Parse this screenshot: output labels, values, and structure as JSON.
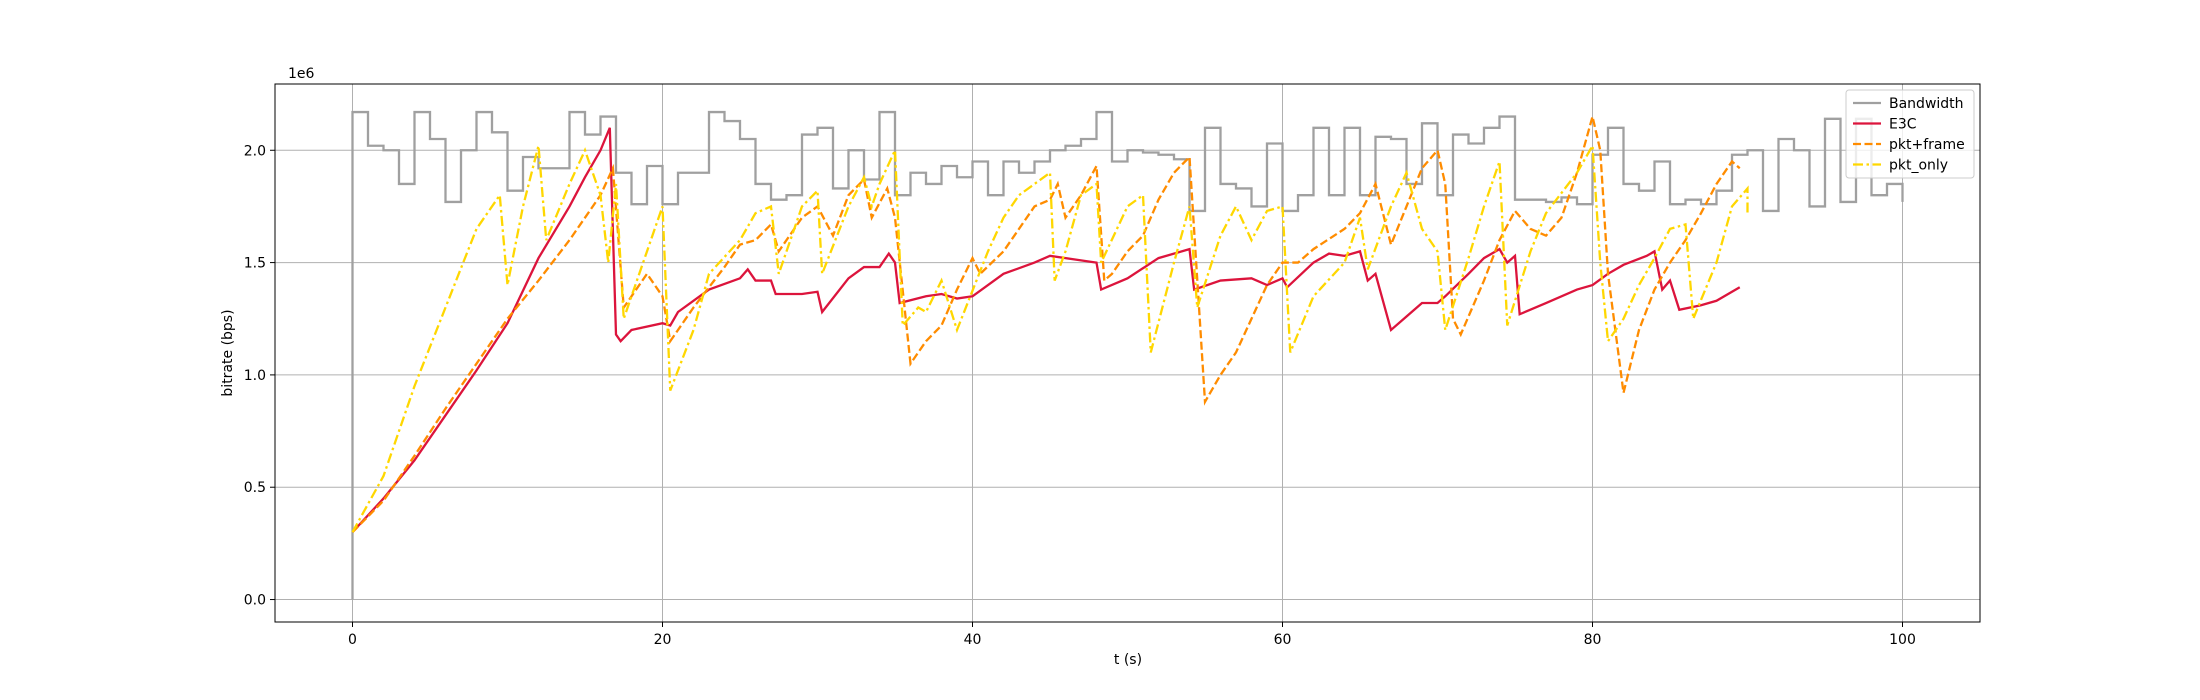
{
  "chart_data": {
    "type": "line",
    "xlabel": "t (s)",
    "ylabel": "bitrate (bps)",
    "y_offset_label": "1e6",
    "xlim": [
      -5,
      105
    ],
    "xticks": [
      0,
      20,
      40,
      60,
      80,
      100
    ],
    "ylim": [
      -100000,
      2295000
    ],
    "yticks": [
      {
        "value": 0,
        "label": "0.0"
      },
      {
        "value": 500000,
        "label": "0.5"
      },
      {
        "value": 1000000,
        "label": "1.0"
      },
      {
        "value": 1500000,
        "label": "1.5"
      },
      {
        "value": 2000000,
        "label": "2.0"
      }
    ],
    "grid": true,
    "legend": "upper right",
    "series": [
      {
        "name": "Bandwidth",
        "color": "#a0a0a0",
        "style": "solid",
        "step": "post",
        "x": [
          0,
          0,
          1,
          2,
          3,
          4,
          5,
          6,
          7,
          8,
          9,
          10,
          11,
          12,
          13,
          14,
          15,
          16,
          17,
          18,
          19,
          20,
          21,
          22,
          23,
          24,
          25,
          26,
          27,
          28,
          29,
          30,
          31,
          32,
          33,
          34,
          35,
          36,
          37,
          38,
          39,
          40,
          41,
          42,
          43,
          44,
          45,
          46,
          47,
          48,
          49,
          50,
          51,
          52,
          53,
          54,
          55,
          56,
          57,
          58,
          59,
          60,
          61,
          62,
          63,
          64,
          65,
          66,
          67,
          68,
          69,
          70,
          71,
          72,
          73,
          74,
          75,
          76,
          77,
          78,
          79,
          80,
          81,
          82,
          83,
          84,
          85,
          86,
          87,
          88,
          89,
          90,
          91,
          92,
          93,
          94,
          95,
          96,
          97,
          98,
          99,
          100
        ],
        "values": [
          0,
          2170000,
          2020000,
          2000000,
          1850000,
          2170000,
          2050000,
          1770000,
          2000000,
          2170000,
          2080000,
          1820000,
          1970000,
          1920000,
          1920000,
          2170000,
          2070000,
          2150000,
          1900000,
          1760000,
          1930000,
          1760000,
          1900000,
          1900000,
          2170000,
          2130000,
          2050000,
          1850000,
          1780000,
          1800000,
          2070000,
          2100000,
          1830000,
          2000000,
          1870000,
          2170000,
          1800000,
          1900000,
          1850000,
          1930000,
          1880000,
          1950000,
          1800000,
          1950000,
          1900000,
          1950000,
          2000000,
          2020000,
          2050000,
          2170000,
          1950000,
          2000000,
          1990000,
          1980000,
          1960000,
          1730000,
          2100000,
          1850000,
          1830000,
          1750000,
          2030000,
          1730000,
          1800000,
          2100000,
          1800000,
          2100000,
          1800000,
          2060000,
          2050000,
          1850000,
          2120000,
          1800000,
          2070000,
          2030000,
          2100000,
          2150000,
          1780000,
          1780000,
          1770000,
          1790000,
          1760000,
          1980000,
          2100000,
          1850000,
          1820000,
          1950000,
          1760000,
          1780000,
          1760000,
          1820000,
          1980000,
          2000000,
          1730000,
          2050000,
          2000000,
          1750000,
          2140000,
          1770000,
          2140000,
          1800000,
          1850000,
          1770000
        ]
      },
      {
        "name": "E3C",
        "color": "#dc143c",
        "style": "solid",
        "x": [
          0,
          2,
          4,
          6,
          8,
          10,
          12,
          14,
          15,
          16,
          16.6,
          17,
          17.3,
          18,
          20,
          20.5,
          21,
          23,
          25,
          25.5,
          26,
          27,
          27.3,
          29,
          30,
          30.3,
          32,
          33,
          34,
          34.6,
          35,
          35.3,
          37,
          38,
          39,
          40,
          42,
          44,
          45,
          47,
          48,
          48.3,
          50,
          52,
          54,
          54.3,
          56,
          58,
          59,
          60,
          60.3,
          62,
          63,
          64,
          65,
          65.5,
          66,
          67,
          68,
          69,
          70,
          70.5,
          72,
          73,
          74,
          74.5,
          75,
          75.3,
          77,
          79,
          80,
          81,
          82,
          83.5,
          84,
          84.5,
          85,
          85.6,
          87,
          88,
          89,
          89.5
        ],
        "values": [
          300000,
          450000,
          620000,
          820000,
          1020000,
          1230000,
          1520000,
          1750000,
          1880000,
          2000000,
          2100000,
          1180000,
          1150000,
          1200000,
          1230000,
          1220000,
          1280000,
          1380000,
          1430000,
          1470000,
          1420000,
          1420000,
          1360000,
          1360000,
          1370000,
          1280000,
          1430000,
          1480000,
          1480000,
          1540000,
          1500000,
          1320000,
          1350000,
          1360000,
          1340000,
          1350000,
          1450000,
          1500000,
          1530000,
          1510000,
          1500000,
          1380000,
          1430000,
          1520000,
          1560000,
          1380000,
          1420000,
          1430000,
          1400000,
          1430000,
          1390000,
          1500000,
          1540000,
          1530000,
          1550000,
          1420000,
          1450000,
          1200000,
          1260000,
          1320000,
          1320000,
          1350000,
          1450000,
          1520000,
          1560000,
          1500000,
          1530000,
          1270000,
          1320000,
          1380000,
          1400000,
          1450000,
          1490000,
          1530000,
          1550000,
          1380000,
          1420000,
          1290000,
          1310000,
          1330000,
          1370000,
          1390000
        ]
      },
      {
        "name": "pkt+frame",
        "color": "#ff8c00",
        "style": "dashed",
        "x": [
          0,
          2,
          4,
          6,
          8,
          10,
          12,
          14,
          16,
          16.8,
          17.5,
          19,
          20,
          20.5,
          22,
          24,
          25,
          26,
          27,
          27.5,
          29,
          30,
          31,
          32,
          33,
          33.5,
          34.5,
          35,
          36,
          37,
          38,
          39,
          40,
          40.5,
          42,
          43,
          44,
          45,
          45.5,
          46,
          47,
          48,
          48.5,
          49,
          50,
          51,
          52,
          53,
          54,
          55,
          56,
          57,
          58,
          59,
          60,
          61,
          62,
          64,
          65,
          66,
          67,
          68,
          69,
          70,
          70.5,
          71,
          71.5,
          73,
          74,
          75,
          76,
          77,
          78,
          79,
          80,
          80.5,
          81,
          82,
          83,
          84,
          85,
          86,
          87,
          88,
          89,
          89.5
        ],
        "values": [
          300000,
          440000,
          640000,
          850000,
          1050000,
          1250000,
          1420000,
          1600000,
          1800000,
          1920000,
          1300000,
          1450000,
          1350000,
          1150000,
          1300000,
          1480000,
          1580000,
          1600000,
          1670000,
          1550000,
          1700000,
          1750000,
          1620000,
          1800000,
          1870000,
          1700000,
          1830000,
          1700000,
          1050000,
          1150000,
          1220000,
          1380000,
          1520000,
          1450000,
          1550000,
          1650000,
          1750000,
          1780000,
          1850000,
          1700000,
          1800000,
          1930000,
          1420000,
          1450000,
          1550000,
          1620000,
          1780000,
          1900000,
          1970000,
          880000,
          1000000,
          1100000,
          1250000,
          1400000,
          1500000,
          1500000,
          1560000,
          1650000,
          1720000,
          1850000,
          1580000,
          1750000,
          1920000,
          2000000,
          1850000,
          1250000,
          1180000,
          1420000,
          1600000,
          1730000,
          1650000,
          1620000,
          1700000,
          1900000,
          2150000,
          2000000,
          1450000,
          920000,
          1200000,
          1380000,
          1500000,
          1600000,
          1720000,
          1850000,
          1950000,
          1920000
        ]
      },
      {
        "name": "pkt_only",
        "color": "#ffd700",
        "style": "dashdot",
        "x": [
          0,
          2,
          4,
          6,
          8,
          9.5,
          10,
          11,
          12,
          12.5,
          14,
          15,
          16,
          16.5,
          17,
          17.5,
          19,
          20,
          20.5,
          22,
          23,
          25,
          26,
          27,
          27.5,
          29,
          30,
          30.3,
          32,
          33,
          33.5,
          34,
          35,
          35.5,
          36.5,
          37,
          38,
          39,
          41,
          42,
          43,
          45,
          45.3,
          46,
          47,
          48,
          48.3,
          50,
          51,
          51.5,
          53,
          54,
          54.5,
          56,
          57,
          58,
          59,
          60,
          60.5,
          62,
          64,
          65,
          65.5,
          67,
          68,
          69,
          70,
          70.5,
          72,
          73,
          74,
          74.5,
          76,
          77,
          79,
          80,
          80.5,
          81,
          82,
          83,
          84,
          85,
          86,
          86.5,
          88,
          89,
          90,
          90
        ],
        "values": [
          300000,
          550000,
          950000,
          1300000,
          1650000,
          1800000,
          1400000,
          1750000,
          2020000,
          1600000,
          1850000,
          2000000,
          1800000,
          1500000,
          1850000,
          1250000,
          1550000,
          1750000,
          930000,
          1200000,
          1450000,
          1600000,
          1720000,
          1750000,
          1450000,
          1750000,
          1820000,
          1450000,
          1750000,
          1880000,
          1750000,
          1850000,
          2000000,
          1220000,
          1300000,
          1280000,
          1420000,
          1200000,
          1550000,
          1700000,
          1800000,
          1900000,
          1420000,
          1550000,
          1800000,
          1850000,
          1500000,
          1750000,
          1800000,
          1100000,
          1500000,
          1750000,
          1300000,
          1620000,
          1750000,
          1600000,
          1730000,
          1750000,
          1100000,
          1350000,
          1500000,
          1700000,
          1470000,
          1750000,
          1900000,
          1650000,
          1550000,
          1200000,
          1520000,
          1750000,
          1950000,
          1220000,
          1550000,
          1720000,
          1900000,
          2020000,
          1500000,
          1150000,
          1250000,
          1400000,
          1520000,
          1650000,
          1670000,
          1250000,
          1500000,
          1750000,
          1830000,
          1720000
        ]
      }
    ]
  }
}
